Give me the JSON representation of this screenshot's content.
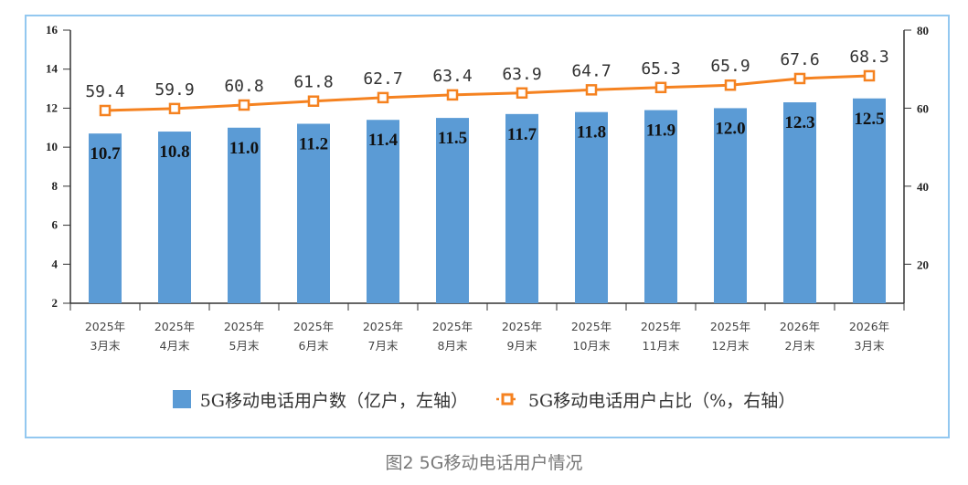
{
  "chart_data": {
    "type": "bar",
    "title": "图2 5G移动电话用户情况",
    "categories": [
      [
        "2025年",
        "3月末"
      ],
      [
        "2025年",
        "4月末"
      ],
      [
        "2025年",
        "5月末"
      ],
      [
        "2025年",
        "6月末"
      ],
      [
        "2025年",
        "7月末"
      ],
      [
        "2025年",
        "8月末"
      ],
      [
        "2025年",
        "9月末"
      ],
      [
        "2025年",
        "10月末"
      ],
      [
        "2025年",
        "11月末"
      ],
      [
        "2025年",
        "12月末"
      ],
      [
        "2026年",
        "2月末"
      ],
      [
        "2026年",
        "3月末"
      ]
    ],
    "series": [
      {
        "name": "5G移动电话用户数（亿户，左轴）",
        "type": "bar",
        "axis": "left",
        "values": [
          10.7,
          10.8,
          11.0,
          11.2,
          11.4,
          11.5,
          11.7,
          11.8,
          11.9,
          12.0,
          12.3,
          12.5
        ],
        "labels": [
          "10.7",
          "10.8",
          "11.0",
          "11.2",
          "11.4",
          "11.5",
          "11.7",
          "11.8",
          "11.9",
          "12.0",
          "12.3",
          "12.5"
        ]
      },
      {
        "name": "5G移动电话用户占比（%，右轴）",
        "type": "line",
        "axis": "right",
        "values": [
          59.4,
          59.9,
          60.8,
          61.8,
          62.7,
          63.4,
          63.9,
          64.7,
          65.3,
          65.9,
          67.6,
          68.3
        ],
        "labels": [
          "59.4",
          "59.9",
          "60.8",
          "61.8",
          "62.7",
          "63.4",
          "63.9",
          "64.7",
          "65.3",
          "65.9",
          "67.6",
          "68.3"
        ]
      }
    ],
    "left_axis": {
      "ylim": [
        2,
        16
      ],
      "ticks": [
        "2",
        "4",
        "6",
        "8",
        "10",
        "12",
        "14",
        "16"
      ]
    },
    "right_axis": {
      "ylim": [
        10,
        80
      ],
      "ticks": [
        "20",
        "40",
        "60",
        "80"
      ]
    },
    "legend_position": "bottom",
    "grid": false,
    "colors": {
      "bar": "#5b9bd5",
      "line": "#f58220",
      "frame": "#93c8f0"
    }
  },
  "legend": {
    "bar_label": "5G移动电话用户数（亿户，左轴）",
    "line_label": "5G移动电话用户占比（%，右轴）"
  },
  "caption": "图2 5G移动电话用户情况"
}
